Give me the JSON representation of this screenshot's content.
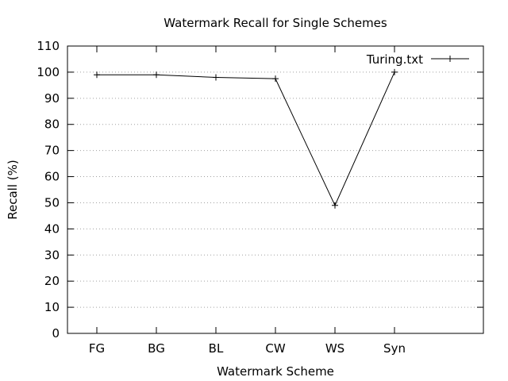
{
  "chart_data": {
    "type": "line",
    "title": "Watermark Recall for Single Schemes",
    "xlabel": "Watermark Scheme",
    "ylabel": "Recall (%)",
    "categories": [
      "FG",
      "BG",
      "BL",
      "CW",
      "WS",
      "Syn"
    ],
    "ylim": [
      0,
      110
    ],
    "yticks": [
      0,
      10,
      20,
      30,
      40,
      50,
      60,
      70,
      80,
      90,
      100,
      110
    ],
    "grid": true,
    "legend_position": "top-right",
    "series": [
      {
        "name": "Turing.txt",
        "values": [
          99,
          99,
          98,
          97.5,
          49,
          100
        ]
      }
    ]
  }
}
